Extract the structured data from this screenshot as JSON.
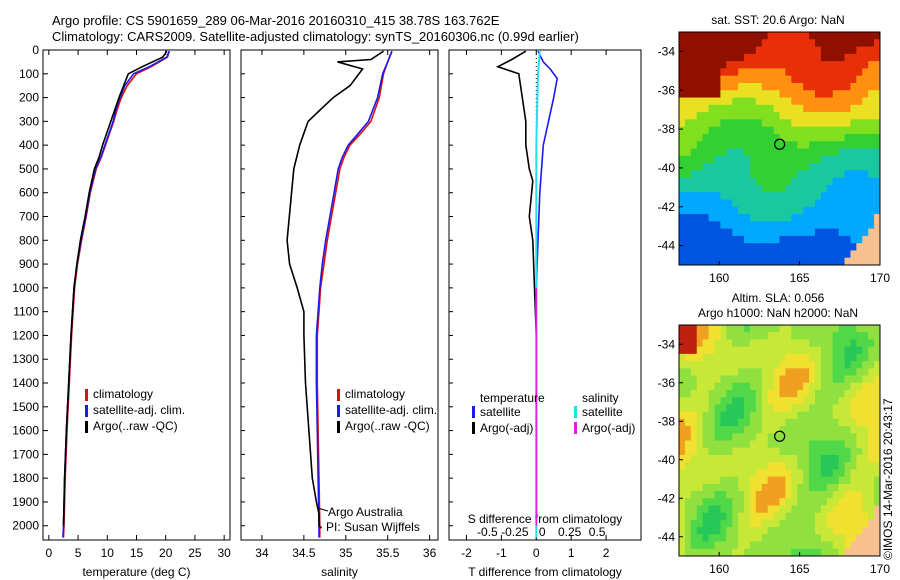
{
  "title": {
    "line1": "Argo profile: CS 5901659_289 06-Mar-2016 20160310_415 38.78S 163.762E",
    "line2": "Climatology: CARS2009. Satellite-adjusted climatology: synTS_20160306.nc (0.99d earlier)"
  },
  "colors": {
    "climatology": "#dd1111",
    "satellite": "#1a1aee",
    "argo": "#000000",
    "sal_satellite": "#22e0e8",
    "sal_argo": "#e020e0"
  },
  "chart_data": [
    {
      "type": "line",
      "xlabel": "temperature (deg C)",
      "ylabel": "",
      "xlim": [
        -1,
        31
      ],
      "ylim": [
        2060,
        0
      ],
      "xticks": [
        "0",
        "5",
        "10",
        "15",
        "20",
        "25",
        "30"
      ],
      "yticks": [
        "0",
        "100",
        "200",
        "300",
        "400",
        "500",
        "600",
        "700",
        "800",
        "900",
        "1000",
        "1100",
        "1200",
        "1300",
        "1400",
        "1500",
        "1600",
        "1700",
        "1800",
        "1900",
        "2000"
      ],
      "legend": [
        "climatology",
        "satellite-adj. clim.",
        "Argo(..raw -QC)"
      ],
      "series": [
        {
          "name": "climatology",
          "x": [
            20.6,
            20.3,
            17.5,
            15.0,
            13.4,
            12.4,
            11.7,
            11.1,
            10.4,
            9.7,
            9.0,
            8.1,
            7.1,
            6.4,
            5.6,
            4.9,
            4.4,
            3.9,
            3.5,
            3.1,
            2.8,
            2.6,
            2.5
          ],
          "y": [
            5,
            30,
            70,
            100,
            150,
            200,
            250,
            300,
            350,
            400,
            450,
            500,
            600,
            700,
            800,
            900,
            1000,
            1200,
            1400,
            1600,
            1800,
            2000,
            2050
          ]
        },
        {
          "name": "satellite-adj. clim.",
          "x": [
            20.6,
            20.2,
            17.2,
            14.5,
            13.0,
            12.2,
            11.5,
            11.0,
            10.3,
            9.6,
            8.9,
            8.0,
            7.0,
            6.3,
            5.5,
            4.8,
            4.3,
            3.8,
            3.4,
            3.0,
            2.7,
            2.5,
            2.4
          ],
          "y": [
            5,
            30,
            70,
            100,
            150,
            200,
            250,
            300,
            350,
            400,
            450,
            500,
            600,
            700,
            800,
            900,
            1000,
            1200,
            1400,
            1600,
            1800,
            2000,
            2050
          ]
        },
        {
          "name": "Argo(..raw -QC)",
          "x": [
            20.2,
            19.5,
            16.0,
            13.6,
            12.8,
            12.0,
            11.3,
            10.6,
            9.9,
            9.2,
            8.6,
            7.8,
            6.9,
            6.2,
            5.4,
            4.8,
            4.3,
            3.8,
            3.4,
            3.0,
            2.7,
            2.5
          ],
          "y": [
            5,
            30,
            70,
            100,
            150,
            200,
            250,
            300,
            350,
            400,
            450,
            500,
            600,
            700,
            800,
            900,
            1000,
            1200,
            1400,
            1600,
            1800,
            2000
          ]
        }
      ]
    },
    {
      "type": "line",
      "xlabel": "salinity",
      "xlim": [
        33.75,
        36.1
      ],
      "ylim": [
        2060,
        0
      ],
      "xticks": [
        "34",
        "34.5",
        "35",
        "35.5",
        "36"
      ],
      "legend": [
        "climatology",
        "satellite-adj. clim.",
        "Argo(..raw -QC)"
      ],
      "annotation": [
        "Argo Australia",
        "PI: Susan Wijffels"
      ],
      "series": [
        {
          "name": "climatology",
          "x": [
            35.55,
            35.5,
            35.45,
            35.4,
            35.3,
            35.18,
            35.05,
            34.98,
            34.93,
            34.88,
            34.83,
            34.78,
            34.74,
            34.7,
            34.68,
            34.66,
            34.66,
            34.67,
            34.68,
            34.69,
            34.69
          ],
          "y": [
            5,
            50,
            100,
            200,
            300,
            350,
            400,
            450,
            500,
            600,
            700,
            800,
            900,
            1000,
            1100,
            1200,
            1400,
            1600,
            1800,
            2000,
            2050
          ]
        },
        {
          "name": "satellite-adj. clim.",
          "x": [
            35.55,
            35.5,
            35.44,
            35.38,
            35.27,
            35.15,
            35.03,
            34.96,
            34.91,
            34.86,
            34.81,
            34.76,
            34.72,
            34.69,
            34.67,
            34.65,
            34.65,
            34.66,
            34.67,
            34.68,
            34.68
          ],
          "y": [
            5,
            50,
            100,
            200,
            300,
            350,
            400,
            450,
            500,
            600,
            700,
            800,
            900,
            1000,
            1100,
            1200,
            1400,
            1600,
            1800,
            2000,
            2050
          ]
        },
        {
          "name": "Argo(..raw -QC)",
          "x": [
            35.45,
            35.3,
            34.9,
            35.2,
            35.05,
            34.85,
            34.7,
            34.55,
            34.5,
            34.45,
            34.38,
            34.3,
            34.33,
            34.42,
            34.5,
            34.5,
            34.52,
            34.56,
            34.6,
            34.65,
            34.68,
            34.68,
            34.71
          ],
          "y": [
            5,
            40,
            50,
            80,
            150,
            200,
            250,
            300,
            350,
            400,
            500,
            800,
            900,
            1000,
            1100,
            1200,
            1400,
            1600,
            1800,
            1900,
            1950,
            2000,
            2010
          ]
        }
      ]
    },
    {
      "type": "line",
      "xlabel": "T difference from climatology",
      "xlim": [
        -2.5,
        3
      ],
      "ylim": [
        2060,
        0
      ],
      "xticks": [
        "-2",
        "-1",
        "0",
        "1",
        "2"
      ],
      "top_label": "S difference from climatology",
      "top_ticks": [
        "-0.5",
        "-0.25",
        "0",
        "0.25",
        "0.5"
      ],
      "legend_titles": [
        "temperature",
        "salinity"
      ],
      "legend": [
        "satellite",
        "Argo(-adj)",
        "satellite",
        "Argo(-adj)"
      ],
      "series": [
        {
          "name": "temperature satellite",
          "x": [
            0.05,
            0.2,
            0.4,
            0.6,
            0.5,
            0.2,
            0.1,
            0.05,
            0.0,
            0.0,
            0.0,
            0.0,
            0.0
          ],
          "y": [
            5,
            50,
            80,
            120,
            200,
            400,
            600,
            800,
            1000,
            1200,
            1600,
            2000,
            2050
          ]
        },
        {
          "name": "temperature Argo(-adj)",
          "x": [
            -0.3,
            -0.7,
            -1.1,
            -0.5,
            -0.4,
            -0.3,
            -0.3,
            -0.2,
            -0.1,
            -0.2,
            -0.1,
            -0.05,
            0.0,
            0.0,
            0.0
          ],
          "y": [
            5,
            40,
            70,
            100,
            200,
            300,
            400,
            500,
            550,
            700,
            800,
            1000,
            1200,
            1600,
            2000
          ]
        },
        {
          "name": "salinity satellite",
          "x": [
            0.1,
            0.05,
            0.0,
            0.0,
            0.0,
            0.0
          ],
          "y": [
            5,
            100,
            400,
            1000,
            1600,
            2050
          ]
        },
        {
          "name": "salinity Argo(-adj)",
          "x": [
            0.0,
            0.0
          ],
          "y": [
            1000,
            2000
          ]
        }
      ]
    }
  ],
  "maps": {
    "sst": {
      "title": "sat. SST: 20.6  Argo: NaN",
      "xticks": [
        "160",
        "165",
        "170"
      ],
      "yticks": [
        "-34",
        "-36",
        "-38",
        "-40",
        "-42",
        "-44"
      ],
      "marker": [
        163.76,
        -38.78
      ]
    },
    "sla": {
      "title_line1": "Altim. SLA: 0.056",
      "title_line2": "Argo h1000: NaN  h2000: NaN",
      "xticks": [
        "160",
        "165",
        "170"
      ],
      "yticks": [
        "-34",
        "-36",
        "-38",
        "-40",
        "-42",
        "-44"
      ],
      "marker": [
        163.76,
        -38.78
      ]
    }
  },
  "stamp": "©IMOS 14-Mar-2016 20:43:17"
}
